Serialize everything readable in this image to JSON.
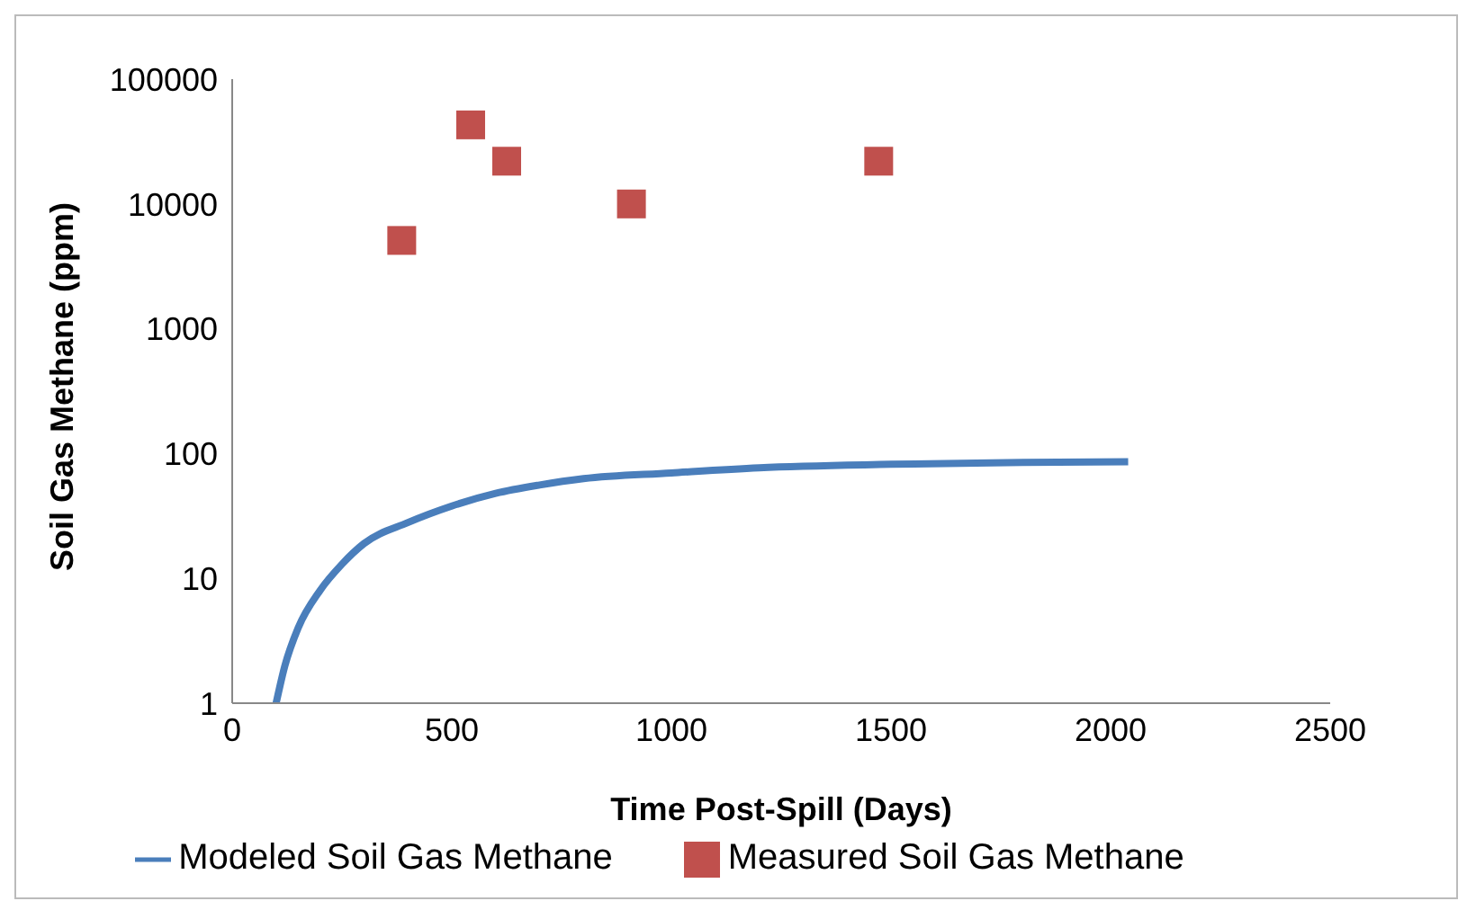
{
  "chart_data": {
    "type": "line",
    "xlabel": "Time Post-Spill (Days)",
    "ylabel": "Soil Gas Methane (ppm)",
    "xlim": [
      0,
      2500
    ],
    "xticks": [
      0,
      500,
      1000,
      1500,
      2000,
      2500
    ],
    "ylim": [
      1,
      100000
    ],
    "yticks": [
      1,
      10,
      100,
      1000,
      10000,
      100000
    ],
    "log": "y",
    "grid": false,
    "legend": "bottom",
    "series": [
      {
        "name": "Modeled Soil Gas Methane",
        "color": "#4a7ebb",
        "marker": "none",
        "line_style": "solid",
        "x": [
          100,
          120,
          150,
          200,
          250,
          300,
          400,
          500,
          600,
          700,
          800,
          1000,
          1200,
          1500,
          1800,
          2040
        ],
        "values": [
          1,
          2,
          4,
          8,
          13,
          19,
          28,
          38,
          48,
          56,
          63,
          70,
          77,
          82,
          85,
          86
        ]
      },
      {
        "name": "Measured Soil Gas Methane",
        "type": "scatter",
        "color": "#c0504d",
        "marker": "square",
        "x": [
          386,
          543,
          625,
          909,
          1472
        ],
        "values": [
          5100,
          43000,
          22000,
          10000,
          22000
        ]
      }
    ]
  }
}
